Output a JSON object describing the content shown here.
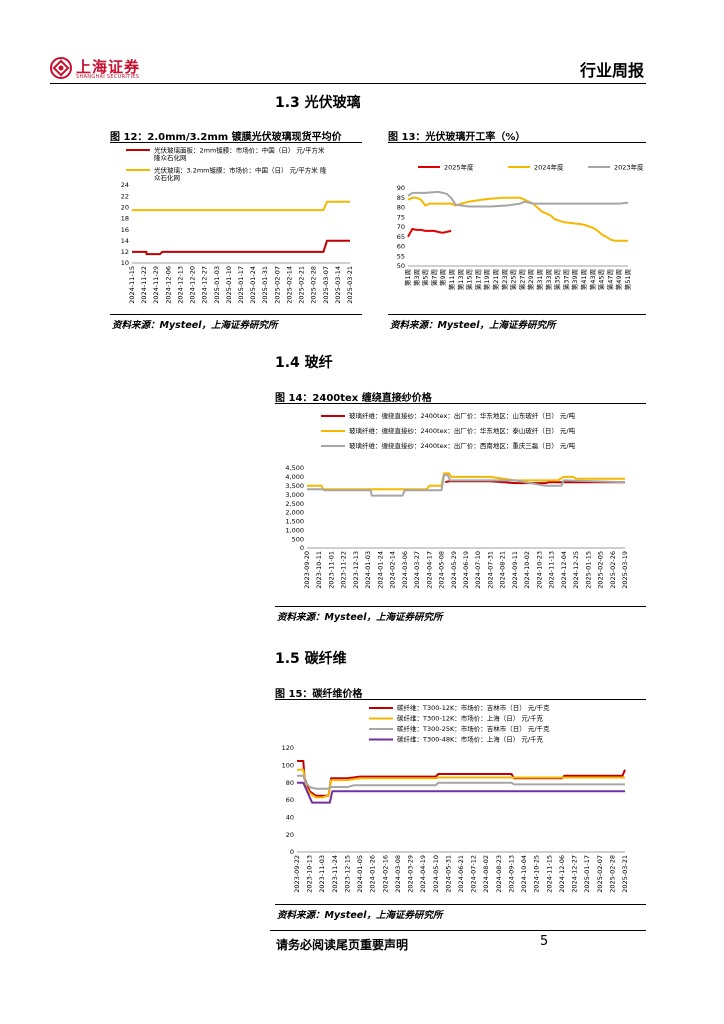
{
  "header": {
    "logo_cn": "上海证券",
    "logo_en": "SHANGHAI SECURITIES",
    "report_type": "行业周报"
  },
  "sections": {
    "s13": "1.3 光伏玻璃",
    "s14": "1.4 玻纤",
    "s15": "1.5 碳纤维"
  },
  "figures": {
    "f12": {
      "title": "图 12：2.0mm/3.2mm 镀膜光伏玻璃现货平均价",
      "source": "资料来源：Mysteel，上海证券研究所"
    },
    "f13": {
      "title": "图 13：光伏玻璃开工率（%）",
      "source": "资料来源：Mysteel，上海证券研究所"
    },
    "f14": {
      "title": "图 14：2400tex 缠绕直接纱价格",
      "source": "资料来源：Mysteel，上海证券研究所"
    },
    "f15": {
      "title": "图 15：碳纤维价格",
      "source": "资料来源：Mysteel，上海证券研究所"
    }
  },
  "chart_data": [
    {
      "id": "fig12",
      "type": "line",
      "legend": [
        {
          "label1": "光伏玻璃面板：2mm镀膜：市场价：中国（日） 元/平方米",
          "label2": "隆众石化网",
          "color": "#c00000"
        },
        {
          "label1": "光伏玻璃：3.2mm镀膜：市场价：中国（日） 元/平方米 隆",
          "label2": "众石化网",
          "color": "#f5b800"
        }
      ],
      "x_ticks": [
        "2024-11-15",
        "2024-11-22",
        "2024-11-29",
        "2024-12-06",
        "2024-12-13",
        "2024-12-20",
        "2024-12-27",
        "2025-01-03",
        "2025-01-10",
        "2025-01-17",
        "2025-01-24",
        "2025-01-31",
        "2025-02-07",
        "2025-02-14",
        "2025-02-21",
        "2025-02-28",
        "2025-03-07",
        "2025-03-14",
        "2025-03-21"
      ],
      "y_ticks": [
        10,
        12,
        14,
        16,
        18,
        20,
        22,
        24
      ],
      "ylim": [
        10,
        24
      ],
      "xlim": [
        0,
        18
      ],
      "series": [
        {
          "name": "2mm",
          "color": "#c00000",
          "points": [
            [
              0,
              12
            ],
            [
              1.2,
              12
            ],
            [
              1.2,
              11.6
            ],
            [
              2.3,
              11.6
            ],
            [
              2.5,
              12
            ],
            [
              15.8,
              12
            ],
            [
              16.1,
              14
            ],
            [
              18,
              14
            ]
          ]
        },
        {
          "name": "3.2mm",
          "color": "#f5b800",
          "points": [
            [
              0,
              19.5
            ],
            [
              15.8,
              19.5
            ],
            [
              16.1,
              21
            ],
            [
              18,
              21
            ]
          ]
        }
      ]
    },
    {
      "id": "fig13",
      "type": "line",
      "legend": [
        {
          "label": "2025年度",
          "color": "#e00000"
        },
        {
          "label": "2024年度",
          "color": "#f5b800"
        },
        {
          "label": "2023年度",
          "color": "#a6a6a6"
        }
      ],
      "x_ticks": [
        "第1周",
        "第3周",
        "第5周",
        "第7周",
        "第9周",
        "第11周",
        "第13周",
        "第15周",
        "第17周",
        "第19周",
        "第21周",
        "第23周",
        "第25周",
        "第27周",
        "第29周",
        "第31周",
        "第33周",
        "第35周",
        "第37周",
        "第39周",
        "第41周",
        "第43周",
        "第45周",
        "第47周",
        "第49周",
        "第51周"
      ],
      "y_ticks": [
        50,
        55,
        60,
        65,
        70,
        75,
        80,
        85,
        90
      ],
      "ylim": [
        50,
        90
      ],
      "xlim": [
        1,
        52
      ],
      "series": [
        {
          "name": "2025年度",
          "color": "#e00000",
          "points": [
            [
              1,
              65
            ],
            [
              2,
              69
            ],
            [
              3,
              68.5
            ],
            [
              4,
              68.5
            ],
            [
              5,
              68
            ],
            [
              6,
              68
            ],
            [
              7,
              68
            ],
            [
              8,
              67.5
            ],
            [
              9,
              67
            ],
            [
              10,
              67.5
            ],
            [
              11,
              68
            ]
          ]
        },
        {
          "name": "2024年度",
          "color": "#f5b800",
          "points": [
            [
              1,
              84
            ],
            [
              2,
              85
            ],
            [
              3,
              85
            ],
            [
              4,
              84
            ],
            [
              5,
              81
            ],
            [
              6,
              82
            ],
            [
              8,
              82
            ],
            [
              10,
              82
            ],
            [
              11,
              82
            ],
            [
              12,
              81
            ],
            [
              15,
              83
            ],
            [
              18,
              84
            ],
            [
              20,
              84.5
            ],
            [
              23,
              85
            ],
            [
              25,
              85
            ],
            [
              27,
              85
            ],
            [
              28,
              84
            ],
            [
              29,
              83
            ],
            [
              30,
              82
            ],
            [
              31,
              80
            ],
            [
              32,
              78
            ],
            [
              34,
              76
            ],
            [
              35,
              74
            ],
            [
              37,
              72.5
            ],
            [
              39,
              72
            ],
            [
              41,
              71.5
            ],
            [
              42,
              71
            ],
            [
              44,
              69.5
            ],
            [
              45,
              68
            ],
            [
              46,
              66
            ],
            [
              47,
              65
            ],
            [
              48,
              63.5
            ],
            [
              49,
              63
            ],
            [
              52,
              63
            ]
          ]
        },
        {
          "name": "2023年度",
          "color": "#a6a6a6",
          "points": [
            [
              1,
              86
            ],
            [
              2,
              87.5
            ],
            [
              5,
              87.5
            ],
            [
              8,
              88
            ],
            [
              10,
              87
            ],
            [
              11,
              85
            ],
            [
              12,
              81.5
            ],
            [
              15,
              80.5
            ],
            [
              20,
              80.5
            ],
            [
              24,
              81
            ],
            [
              27,
              82
            ],
            [
              28,
              83
            ],
            [
              29,
              82.5
            ],
            [
              30,
              82
            ],
            [
              35,
              82
            ],
            [
              40,
              82
            ],
            [
              45,
              82
            ],
            [
              50,
              82
            ],
            [
              52,
              82.5
            ]
          ]
        }
      ]
    },
    {
      "id": "fig14",
      "type": "line",
      "legend": [
        {
          "label": "玻璃纤维：缠绕直接纱：2400tex：出厂价：华东地区：山东玻纤（日） 元/吨",
          "color": "#c00000"
        },
        {
          "label": "玻璃纤维：缠绕直接纱：2400tex：出厂价：华东地区：泰山玻纤（日） 元/吨",
          "color": "#f5b800"
        },
        {
          "label": "玻璃纤维：缠绕直接纱：2400tex：出厂价：西南地区：重庆三磊（日） 元/吨",
          "color": "#a6a6a6"
        }
      ],
      "x_ticks": [
        "2023-09-20",
        "2023-10-11",
        "2023-11-01",
        "2023-11-22",
        "2023-12-13",
        "2024-01-03",
        "2024-01-24",
        "2024-02-14",
        "2024-03-06",
        "2024-03-27",
        "2024-04-17",
        "2024-05-08",
        "2024-05-29",
        "2024-06-19",
        "2024-07-10",
        "2024-07-31",
        "2024-08-21",
        "2024-09-11",
        "2024-10-02",
        "2024-10-23",
        "2024-11-13",
        "2024-12-04",
        "2024-12-25",
        "2025-01-15",
        "2025-02-05",
        "2025-02-26",
        "2025-03-19"
      ],
      "y_ticks": [
        0,
        500,
        1000,
        1500,
        2000,
        2500,
        3000,
        3500,
        4000,
        4500
      ],
      "ylim": [
        0,
        4500
      ],
      "xlim": [
        0,
        26
      ],
      "series": [
        {
          "name": "山东玻纤",
          "color": "#c00000",
          "points": [
            [
              11.3,
              3700
            ],
            [
              11.6,
              3750
            ],
            [
              15,
              3750
            ],
            [
              17,
              3650
            ],
            [
              19.5,
              3650
            ],
            [
              19.8,
              3700
            ],
            [
              26,
              3700
            ]
          ]
        },
        {
          "name": "泰山玻纤",
          "color": "#f5b800",
          "points": [
            [
              0,
              3500
            ],
            [
              1.2,
              3500
            ],
            [
              1.3,
              3300
            ],
            [
              9.8,
              3300
            ],
            [
              10,
              3500
            ],
            [
              11,
              3500
            ],
            [
              11.2,
              4200
            ],
            [
              11.6,
              4200
            ],
            [
              11.8,
              4000
            ],
            [
              15,
              4000
            ],
            [
              17,
              3800
            ],
            [
              20.5,
              3800
            ],
            [
              21,
              4000
            ],
            [
              21.8,
              4000
            ],
            [
              22,
              3900
            ],
            [
              26,
              3900
            ]
          ]
        },
        {
          "name": "重庆三磊",
          "color": "#a6a6a6",
          "points": [
            [
              0,
              3300
            ],
            [
              1.3,
              3300
            ],
            [
              1.4,
              3250
            ],
            [
              5.2,
              3250
            ],
            [
              5.3,
              2950
            ],
            [
              7.8,
              2950
            ],
            [
              8,
              3250
            ],
            [
              11,
              3250
            ],
            [
              11.2,
              4100
            ],
            [
              11.5,
              4100
            ],
            [
              11.7,
              3800
            ],
            [
              15,
              3800
            ],
            [
              17,
              3800
            ],
            [
              19.5,
              3500
            ],
            [
              20.8,
              3500
            ],
            [
              21,
              3800
            ],
            [
              26,
              3700
            ]
          ]
        }
      ]
    },
    {
      "id": "fig15",
      "type": "line",
      "legend": [
        {
          "label": "碳纤维：T300-12K：市场价：吉林市（日） 元/千克",
          "color": "#c00000"
        },
        {
          "label": "碳纤维：T300-12K：市场价：上海（日） 元/千克",
          "color": "#f5b800"
        },
        {
          "label": "碳纤维：T300-25K：市场价：吉林市（日） 元/千克",
          "color": "#a6a6a6"
        },
        {
          "label": "碳纤维：T300-48K：市场价：上海（日） 元/千克",
          "color": "#7030a0"
        }
      ],
      "x_ticks": [
        "2023-09-22",
        "2023-10-13",
        "2023-11-03",
        "2023-11-24",
        "2023-12-15",
        "2024-01-05",
        "2024-01-26",
        "2024-02-16",
        "2024-03-08",
        "2024-03-29",
        "2024-04-19",
        "2024-05-10",
        "2024-05-31",
        "2024-06-21",
        "2024-07-12",
        "2024-08-02",
        "2024-08-23",
        "2024-09-13",
        "2024-10-04",
        "2024-10-25",
        "2024-11-15",
        "2024-12-06",
        "2024-12-27",
        "2025-01-17",
        "2025-02-07",
        "2025-02-28",
        "2025-03-21"
      ],
      "y_ticks": [
        0,
        20,
        40,
        60,
        80,
        100,
        120
      ],
      "ylim": [
        0,
        120
      ],
      "xlim": [
        0,
        26
      ],
      "series": [
        {
          "name": "T300-12K 吉林",
          "color": "#c00000",
          "points": [
            [
              0,
              105
            ],
            [
              0.5,
              105
            ],
            [
              0.6,
              85
            ],
            [
              1,
              70
            ],
            [
              1.5,
              65
            ],
            [
              2,
              65
            ],
            [
              2.5,
              65
            ],
            [
              2.7,
              85
            ],
            [
              4,
              85
            ],
            [
              5,
              87
            ],
            [
              11,
              87
            ],
            [
              11.2,
              90
            ],
            [
              17,
              90
            ],
            [
              17.2,
              85
            ],
            [
              21,
              85
            ],
            [
              21.2,
              88
            ],
            [
              25.8,
              88
            ],
            [
              26,
              95
            ]
          ]
        },
        {
          "name": "T300-12K 上海",
          "color": "#f5b800",
          "points": [
            [
              0,
              95
            ],
            [
              0.5,
              95
            ],
            [
              0.7,
              75
            ],
            [
              1,
              68
            ],
            [
              1.5,
              63
            ],
            [
              2,
              63
            ],
            [
              2.5,
              65
            ],
            [
              2.7,
              83
            ],
            [
              4,
              83
            ],
            [
              5,
              85
            ],
            [
              11,
              85
            ],
            [
              11.2,
              86
            ],
            [
              26,
              86
            ]
          ]
        },
        {
          "name": "T300-25K 吉林",
          "color": "#a6a6a6",
          "points": [
            [
              0,
              88
            ],
            [
              0.5,
              88
            ],
            [
              0.7,
              80
            ],
            [
              1,
              75
            ],
            [
              1.5,
              73
            ],
            [
              2.5,
              73
            ],
            [
              2.7,
              75
            ],
            [
              4,
              75
            ],
            [
              4.5,
              77
            ],
            [
              11,
              77
            ],
            [
              11.2,
              80
            ],
            [
              17,
              80
            ],
            [
              17.2,
              78
            ],
            [
              26,
              78
            ]
          ]
        },
        {
          "name": "T300-48K 上海",
          "color": "#7030a0",
          "points": [
            [
              0,
              80
            ],
            [
              0.5,
              80
            ],
            [
              0.8,
              70
            ],
            [
              1.2,
              57
            ],
            [
              2.6,
              57
            ],
            [
              2.8,
              70
            ],
            [
              26,
              70
            ]
          ]
        }
      ]
    }
  ],
  "footer": {
    "disclaimer": "请务必阅读尾页重要声明",
    "page": "5"
  }
}
